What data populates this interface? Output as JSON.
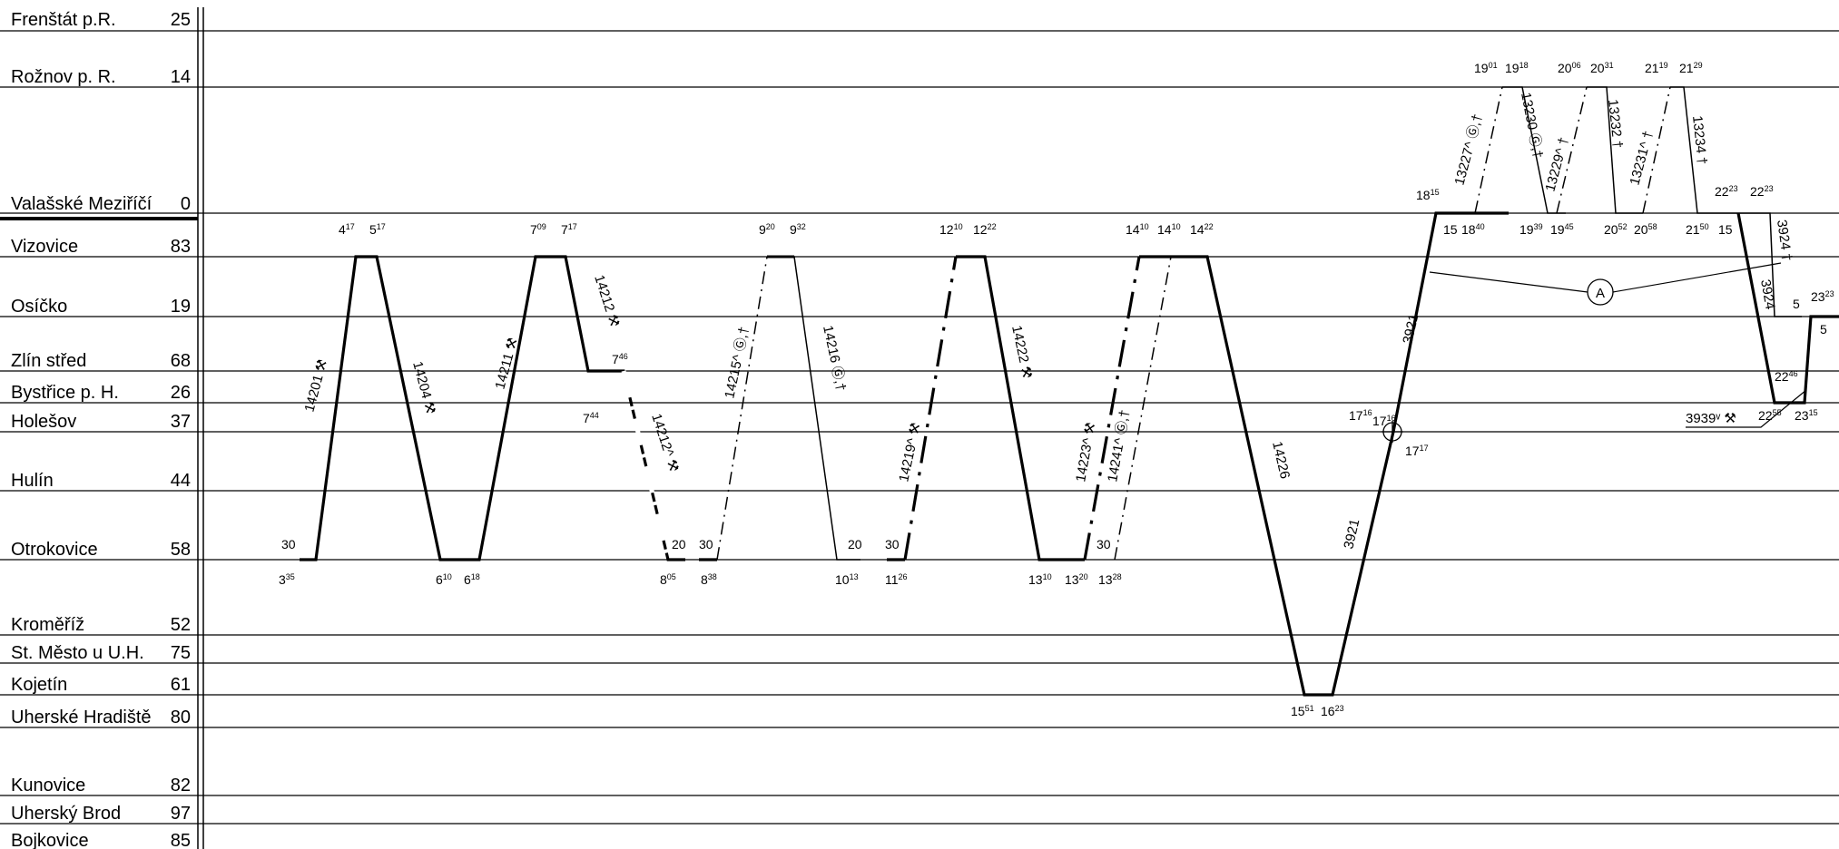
{
  "stations": [
    {
      "name": "Frenštát p.R.",
      "code": "25"
    },
    {
      "name": "Rožnov p. R.",
      "code": "14"
    },
    {
      "name": "Valašské Meziříčí",
      "code": "0"
    },
    {
      "name": "Vizovice",
      "code": "83"
    },
    {
      "name": "Osíčko",
      "code": "19"
    },
    {
      "name": "Zlín střed",
      "code": "68"
    },
    {
      "name": "Bystřice p. H.",
      "code": "26"
    },
    {
      "name": "Holešov",
      "code": "37"
    },
    {
      "name": "Hulín",
      "code": "44"
    },
    {
      "name": "Otrokovice",
      "code": "58"
    },
    {
      "name": "Kroměříž",
      "code": "52"
    },
    {
      "name": "St. Město u U.H.",
      "code": "75"
    },
    {
      "name": "Kojetín",
      "code": "61"
    },
    {
      "name": "Uherské Hradiště",
      "code": "80"
    },
    {
      "name": "Kunovice",
      "code": "82"
    },
    {
      "name": "Uherský Brod",
      "code": "97"
    },
    {
      "name": "Bojkovice",
      "code": "85"
    }
  ],
  "trains": [
    {
      "number": "14201",
      "mark": "⚒"
    },
    {
      "number": "14204",
      "mark": "⚒"
    },
    {
      "number": "14211",
      "mark": "⚒"
    },
    {
      "number": "14212",
      "mark": "⚒"
    },
    {
      "number": "14212^",
      "mark": "⚒"
    },
    {
      "number": "14215^",
      "mark": "Ⓖ,†"
    },
    {
      "number": "14216",
      "mark": "Ⓖ,†"
    },
    {
      "number": "14219^",
      "mark": "⚒"
    },
    {
      "number": "14222",
      "mark": "⚒"
    },
    {
      "number": "14223^",
      "mark": "⚒"
    },
    {
      "number": "14241^",
      "mark": "Ⓖ,†"
    },
    {
      "number": "14226",
      "mark": ""
    },
    {
      "number": "3921",
      "mark": ""
    },
    {
      "number": "13227^",
      "mark": "Ⓖ,†"
    },
    {
      "number": "13230",
      "mark": "Ⓖ,†"
    },
    {
      "number": "13229^",
      "mark": "†"
    },
    {
      "number": "13232",
      "mark": "†"
    },
    {
      "number": "13231^",
      "mark": "†"
    },
    {
      "number": "13234",
      "mark": "†"
    },
    {
      "number": "3924",
      "mark": "†"
    },
    {
      "number": "3939ᵛ",
      "mark": "⚒"
    }
  ],
  "times": [
    {
      "h": "4",
      "m": "17"
    },
    {
      "h": "5",
      "m": "17"
    },
    {
      "h": "7",
      "m": "09"
    },
    {
      "h": "7",
      "m": "17"
    },
    {
      "h": "9",
      "m": "20"
    },
    {
      "h": "9",
      "m": "32"
    },
    {
      "h": "12",
      "m": "10"
    },
    {
      "h": "12",
      "m": "22"
    },
    {
      "h": "14",
      "m": "10"
    },
    {
      "h": "14",
      "m": "10"
    },
    {
      "h": "14",
      "m": "22"
    },
    {
      "h": "3",
      "m": "35"
    },
    {
      "h": "6",
      "m": "10"
    },
    {
      "h": "6",
      "m": "18"
    },
    {
      "h": "8",
      "m": "05"
    },
    {
      "h": "8",
      "m": "38"
    },
    {
      "h": "10",
      "m": "13"
    },
    {
      "h": "11",
      "m": "26"
    },
    {
      "h": "13",
      "m": "10"
    },
    {
      "h": "13",
      "m": "20"
    },
    {
      "h": "13",
      "m": "28"
    },
    {
      "h": "7",
      "m": "46"
    },
    {
      "h": "7",
      "m": "44"
    },
    {
      "h": "15",
      "m": "51"
    },
    {
      "h": "16",
      "m": "23"
    },
    {
      "h": "17",
      "m": "16"
    },
    {
      "h": "17",
      "m": "16"
    },
    {
      "h": "17",
      "m": "17"
    },
    {
      "h": "18",
      "m": "15"
    },
    {
      "h": "18",
      "m": "40"
    },
    {
      "h": "19",
      "m": "01"
    },
    {
      "h": "19",
      "m": "18"
    },
    {
      "h": "19",
      "m": "39"
    },
    {
      "h": "19",
      "m": "45"
    },
    {
      "h": "20",
      "m": "06"
    },
    {
      "h": "20",
      "m": "31"
    },
    {
      "h": "20",
      "m": "52"
    },
    {
      "h": "20",
      "m": "58"
    },
    {
      "h": "21",
      "m": "19"
    },
    {
      "h": "21",
      "m": "29"
    },
    {
      "h": "21",
      "m": "50"
    },
    {
      "h": "22",
      "m": "23"
    },
    {
      "h": "22",
      "m": "23"
    },
    {
      "h": "22",
      "m": "46"
    },
    {
      "h": "22",
      "m": "55"
    },
    {
      "h": "23",
      "m": "15"
    },
    {
      "h": "23",
      "m": "23"
    }
  ],
  "minutes": [
    "30",
    "20",
    "30",
    "20",
    "30",
    "30",
    "15",
    "15",
    "5",
    "5"
  ],
  "marker_label": "A"
}
